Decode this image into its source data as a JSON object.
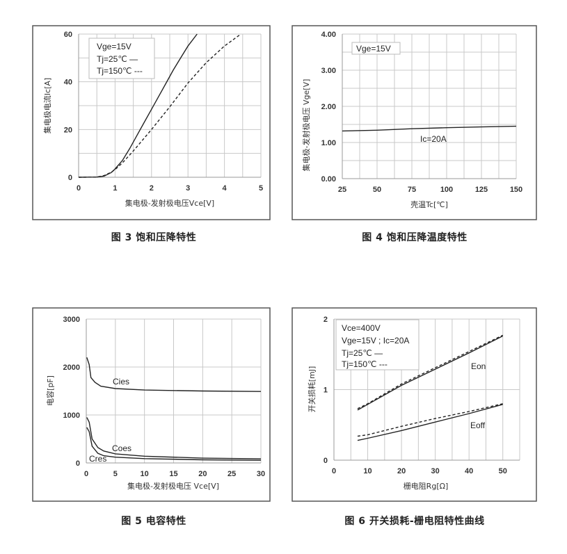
{
  "chart_data": [
    {
      "type": "line",
      "caption": "图 3 饱和压降特性",
      "xlabel": "集电极-发射极电压Vce[V]",
      "ylabel": "集电极电流Ic[A]",
      "xlim": [
        0,
        5
      ],
      "ylim": [
        0,
        60
      ],
      "xticks": [
        "0",
        "1",
        "2",
        "3",
        "4",
        "5"
      ],
      "yticks": [
        "0",
        "20",
        "40",
        "60"
      ],
      "grid": true,
      "legend": [
        "Vge=15V",
        "Tj=25℃ —",
        "Tj=150℃ ---"
      ],
      "series": [
        {
          "style": "solid",
          "x": [
            0,
            0.5,
            0.7,
            0.9,
            1,
            1.2,
            1.4,
            1.6,
            1.8,
            2,
            2.2,
            2.4,
            2.6,
            2.8,
            3,
            3.25
          ],
          "y": [
            0,
            0.1,
            0.5,
            2,
            3.5,
            7,
            12,
            17.5,
            23,
            28.5,
            34,
            39.5,
            45,
            50,
            55,
            60
          ]
        },
        {
          "style": "dashed",
          "x": [
            0,
            0.5,
            0.7,
            0.9,
            1,
            1.2,
            1.5,
            2,
            2.5,
            3,
            3.5,
            4,
            4.45
          ],
          "y": [
            0,
            0.1,
            0.7,
            2.2,
            3.2,
            6,
            11,
            20,
            29.5,
            39.5,
            48,
            55,
            60
          ]
        }
      ]
    },
    {
      "type": "line",
      "caption": "图 4 饱和压降温度特性",
      "xlabel": "壳温Tc[℃]",
      "ylabel": "集电极-发射极电压 Vge[V]",
      "xlim": [
        25,
        150
      ],
      "ylim": [
        0,
        4
      ],
      "xticks": [
        "25",
        "50",
        "75",
        "100",
        "125",
        "150"
      ],
      "yticks": [
        "0.00",
        "1.00",
        "2.00",
        "3.00",
        "4.00"
      ],
      "grid": true,
      "legend": [
        "Vge=15V"
      ],
      "annotations": [
        "Ic=20A"
      ],
      "series": [
        {
          "style": "solid",
          "x": [
            25,
            50,
            75,
            100,
            125,
            150
          ],
          "y": [
            1.32,
            1.34,
            1.38,
            1.41,
            1.43,
            1.45
          ]
        }
      ]
    },
    {
      "type": "line",
      "caption": "图 5 电容特性",
      "xlabel": "集电极-发射极电压 Vce[V]",
      "ylabel": "电容[pF]",
      "xlim": [
        0,
        30
      ],
      "ylim": [
        0,
        3000
      ],
      "xticks": [
        "0",
        "5",
        "10",
        "15",
        "20",
        "25",
        "30"
      ],
      "yticks": [
        "0",
        "1000",
        "2000",
        "3000"
      ],
      "grid": true,
      "series": [
        {
          "name": "Cies",
          "style": "solid",
          "x": [
            0.1,
            0.5,
            0.8,
            1.5,
            2.5,
            5,
            10,
            20,
            30
          ],
          "y": [
            2200,
            2050,
            1780,
            1680,
            1600,
            1550,
            1520,
            1500,
            1490
          ]
        },
        {
          "name": "Coes",
          "style": "solid",
          "x": [
            0.1,
            0.5,
            1,
            2,
            3,
            5,
            10,
            20,
            30
          ],
          "y": [
            950,
            850,
            500,
            320,
            250,
            190,
            140,
            100,
            85
          ]
        },
        {
          "name": "Cres",
          "style": "solid",
          "x": [
            0.1,
            0.5,
            1,
            2,
            3,
            5,
            10,
            20,
            30
          ],
          "y": [
            740,
            650,
            350,
            200,
            150,
            120,
            90,
            65,
            55
          ]
        }
      ]
    },
    {
      "type": "line",
      "caption": "图 6 开关损耗-栅电阻特性曲线",
      "xlabel": "栅电阻Rg[Ω]",
      "ylabel": "开关损耗[mJ]",
      "xlim": [
        0,
        55
      ],
      "ylim": [
        0,
        2
      ],
      "xticks": [
        "0",
        "10",
        "20",
        "30",
        "40",
        "50"
      ],
      "yticks": [
        "0",
        "1",
        "2"
      ],
      "grid": true,
      "legend": [
        "Vce=400V",
        "Vge=15V ; Ic=20A",
        "Tj=25℃ —",
        "Tj=150℃ ---"
      ],
      "annotations": [
        "Eon",
        "Eoff"
      ],
      "series": [
        {
          "name": "Eon",
          "style": "solid",
          "x": [
            7,
            10,
            20,
            30,
            40,
            50
          ],
          "y": [
            0.71,
            0.79,
            1.06,
            1.29,
            1.52,
            1.76
          ]
        },
        {
          "name": "Eon",
          "style": "dashed",
          "x": [
            7,
            10,
            20,
            30,
            40,
            50
          ],
          "y": [
            0.73,
            0.8,
            1.08,
            1.31,
            1.54,
            1.77
          ]
        },
        {
          "name": "Eoff",
          "style": "solid",
          "x": [
            7,
            10,
            20,
            30,
            40,
            50
          ],
          "y": [
            0.28,
            0.31,
            0.42,
            0.54,
            0.66,
            0.79
          ]
        },
        {
          "name": "Eoff",
          "style": "dashed",
          "x": [
            7,
            10,
            20,
            30,
            40,
            50
          ],
          "y": [
            0.34,
            0.36,
            0.48,
            0.59,
            0.69,
            0.8
          ]
        }
      ]
    }
  ]
}
